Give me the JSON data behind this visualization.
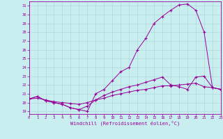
{
  "xlabel": "Windchill (Refroidissement éolien,°C)",
  "bg_color": "#c8eef0",
  "grid_color": "#b0d8da",
  "line_color": "#990099",
  "xlim": [
    0,
    23
  ],
  "ylim": [
    19,
    31.5
  ],
  "yticks": [
    19,
    20,
    21,
    22,
    23,
    24,
    25,
    26,
    27,
    28,
    29,
    30,
    31
  ],
  "xticks": [
    0,
    1,
    2,
    3,
    4,
    5,
    6,
    7,
    8,
    9,
    10,
    11,
    12,
    13,
    14,
    15,
    16,
    17,
    18,
    19,
    20,
    21,
    22,
    23
  ],
  "curve1_x": [
    0,
    1,
    2,
    3,
    4,
    5,
    6,
    7,
    8,
    9,
    10,
    11,
    12,
    13,
    14,
    15,
    16,
    17,
    18,
    19,
    20,
    21,
    22,
    23
  ],
  "curve1_y": [
    20.4,
    20.7,
    20.2,
    20.0,
    19.8,
    19.4,
    19.2,
    19.0,
    21.0,
    21.5,
    22.5,
    23.5,
    24.0,
    26.0,
    27.3,
    29.0,
    29.8,
    30.5,
    31.1,
    31.2,
    30.5,
    28.0,
    21.7,
    21.5
  ],
  "curve2_x": [
    0,
    1,
    2,
    3,
    4,
    5,
    6,
    7,
    8,
    9,
    10,
    11,
    12,
    13,
    14,
    15,
    16,
    17,
    18,
    19,
    20,
    21,
    22,
    23
  ],
  "curve2_y": [
    20.4,
    20.7,
    20.2,
    20.0,
    19.8,
    19.4,
    19.2,
    19.6,
    20.3,
    20.8,
    21.2,
    21.5,
    21.8,
    22.0,
    22.3,
    22.6,
    22.9,
    22.0,
    21.8,
    21.5,
    22.9,
    23.0,
    21.7,
    21.5
  ],
  "curve3_x": [
    0,
    1,
    2,
    3,
    4,
    5,
    6,
    7,
    8,
    9,
    10,
    11,
    12,
    13,
    14,
    15,
    16,
    17,
    18,
    19,
    20,
    21,
    22,
    23
  ],
  "curve3_y": [
    20.4,
    20.5,
    20.3,
    20.1,
    20.0,
    19.9,
    19.8,
    20.0,
    20.3,
    20.5,
    20.8,
    21.0,
    21.2,
    21.4,
    21.5,
    21.7,
    21.9,
    21.9,
    22.0,
    22.1,
    22.2,
    21.8,
    21.7,
    21.5
  ]
}
